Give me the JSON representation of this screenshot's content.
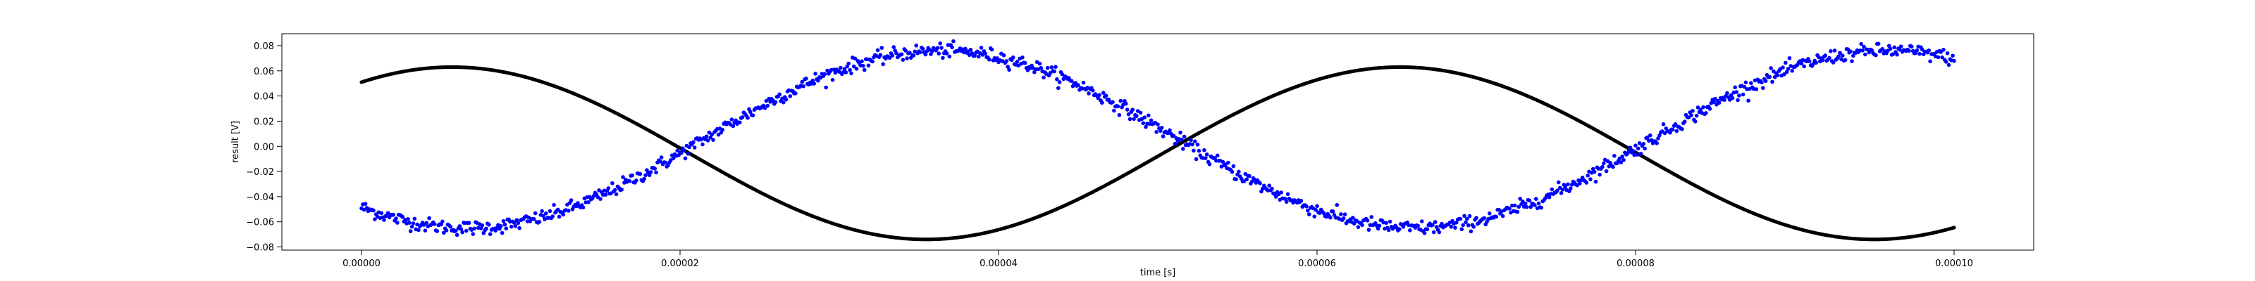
{
  "chart_data": {
    "type": "scatter",
    "title": "",
    "xlabel": "time [s]",
    "ylabel": "result [V]",
    "xlim": [
      -5e-06,
      0.000105
    ],
    "ylim": [
      -0.0825,
      0.0895
    ],
    "xticks": [
      0,
      2e-05,
      4e-05,
      6e-05,
      8e-05,
      0.0001
    ],
    "xtick_labels": [
      "0.00000",
      "0.00002",
      "0.00004",
      "0.00006",
      "0.00008",
      "0.00010"
    ],
    "yticks": [
      -0.08,
      -0.06,
      -0.04,
      -0.02,
      0.0,
      0.02,
      0.04,
      0.06,
      0.08
    ],
    "ytick_labels": [
      "−0.08",
      "−0.06",
      "−0.04",
      "−0.02",
      "0.00",
      "0.02",
      "0.04",
      "0.06",
      "0.08"
    ],
    "grid": false,
    "legend": "none",
    "series": [
      {
        "color": "#000000",
        "x": [
          0,
          1e-05,
          2e-05,
          3e-05,
          4e-05,
          5e-05,
          6e-05,
          7e-05,
          8e-05,
          9e-05,
          0.0001
        ],
        "y": [
          0.05,
          0.058,
          0.006,
          -0.058,
          -0.068,
          -0.012,
          0.054,
          0.049,
          -0.005,
          -0.065,
          -0.061
        ],
        "model": "sine",
        "amplitude": 0.0685,
        "offset": -0.0055,
        "frequency_hz": 16800,
        "phase_rad": 0.97
      },
      {
        "color": "#0000ff",
        "x": [
          0,
          1e-05,
          2e-05,
          3e-05,
          4e-05,
          5e-05,
          6e-05,
          7e-05,
          8e-05,
          9e-05,
          0.0001
        ],
        "y": [
          -0.062,
          -0.05,
          0.012,
          0.073,
          0.062,
          -0.008,
          -0.065,
          -0.051,
          0.013,
          0.075,
          0.051
        ],
        "model": "sine",
        "amplitude": 0.0705,
        "offset": 0.0055,
        "frequency_hz": 16800,
        "phase_rad": -2.27,
        "noise": 0.0028
      }
    ]
  }
}
